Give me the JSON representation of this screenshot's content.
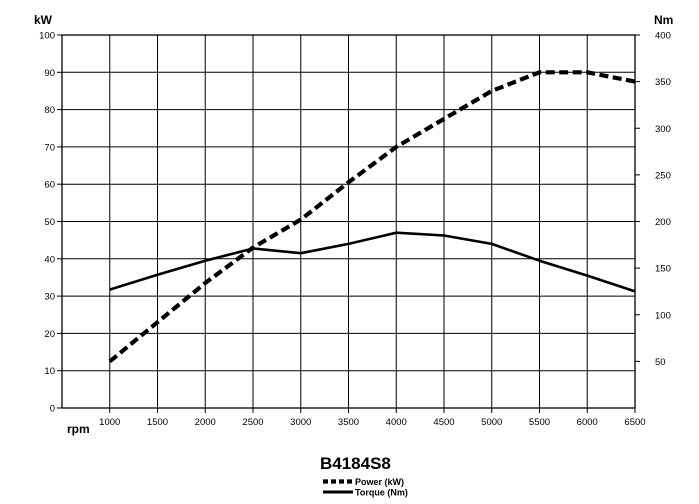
{
  "chart_data": {
    "type": "line",
    "title": "B4184S8",
    "x": [
      1000,
      1500,
      2000,
      2500,
      3000,
      3500,
      4000,
      4500,
      5000,
      5500,
      6000,
      6500
    ],
    "xlabel": "rpm",
    "xlim": [
      500,
      6500
    ],
    "x_ticks": [
      "1000",
      "1500",
      "2000",
      "2500",
      "3000",
      "3500",
      "4000",
      "4500",
      "5000",
      "5500",
      "6000",
      "6500"
    ],
    "y_left": {
      "label": "kW",
      "lim": [
        0,
        100
      ],
      "ticks": [
        "0",
        "10",
        "20",
        "30",
        "40",
        "50",
        "60",
        "70",
        "80",
        "90",
        "100"
      ]
    },
    "y_right": {
      "label": "Nm",
      "lim": [
        0,
        400
      ],
      "ticks": [
        "50",
        "100",
        "150",
        "200",
        "250",
        "300",
        "350",
        "400"
      ]
    },
    "series": [
      {
        "name": "Power (kW)",
        "axis": "left",
        "style": "dashed",
        "values": [
          12.5,
          23,
          33.5,
          43,
          50.5,
          60.5,
          70,
          77.5,
          85,
          90,
          90,
          87.5
        ]
      },
      {
        "name": "Torque (Nm)",
        "axis": "right",
        "style": "solid",
        "values": [
          127,
          143,
          158,
          171,
          166,
          176,
          188,
          185,
          176,
          158,
          142,
          125
        ]
      }
    ],
    "grid": true,
    "legend_position": "bottom-center",
    "colors": {
      "lines": "#000000",
      "grid": "#000000",
      "background": "#ffffff"
    }
  }
}
